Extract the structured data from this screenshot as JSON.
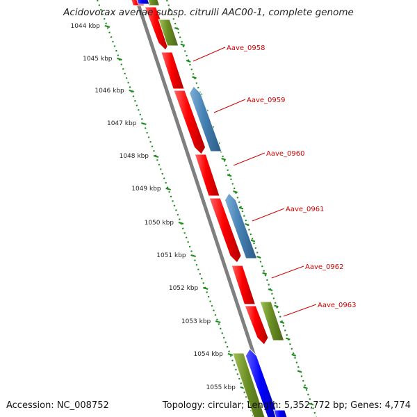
{
  "map": {
    "title": "Acidovorax avenae subsp. citrulli AAC00-1, complete genome",
    "accession": "Accession: NC_008752",
    "summary": "Topology: circular; Length: 5,352,772 bp; Genes: 4,774",
    "colors": {
      "backbone": "#7f7f7f",
      "tick_dots": "#1c8a1c",
      "forward_gene": "#ff0000",
      "reverse_gene_blue": "#4682b4",
      "reverse_gene_olive": "#6b8e23",
      "strand_blue": "#0000ff",
      "label": "#d00000"
    },
    "ticks": [
      "1044 kbp",
      "1045 kbp",
      "1046 kbp",
      "1047 kbp",
      "1048 kbp",
      "1049 kbp",
      "1050 kbp",
      "1051 kbp",
      "1052 kbp",
      "1053 kbp",
      "1054 kbp",
      "1055 kbp"
    ],
    "genes": [
      {
        "label": "Aave_0958"
      },
      {
        "label": "Aave_0959"
      },
      {
        "label": "Aave_0960"
      },
      {
        "label": "Aave_0961"
      },
      {
        "label": "Aave_0962"
      },
      {
        "label": "Aave_0963"
      }
    ]
  }
}
